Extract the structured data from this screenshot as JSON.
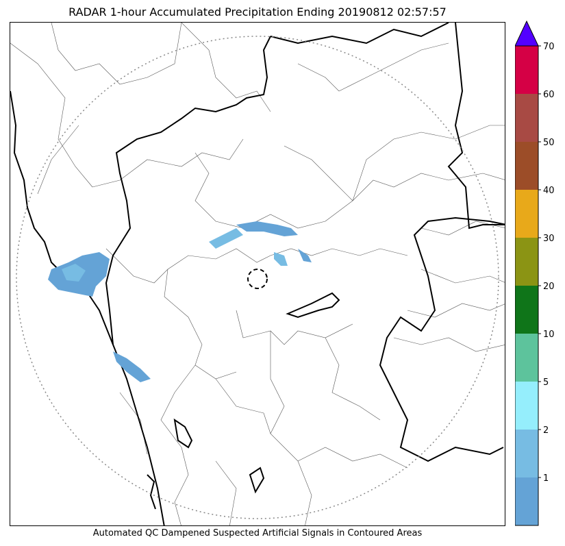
{
  "title": "RADAR 1-hour Accumulated Precipitation Ending 20190812 02:57:57",
  "caption": "Automated QC Dampened Suspected Artificial Signals in Contoured Areas",
  "legend": {
    "levels": [
      {
        "label": "1",
        "color": "#64a3d6"
      },
      {
        "label": "2",
        "color": "#77bce3"
      },
      {
        "label": "5",
        "color": "#95eefc"
      },
      {
        "label": "10",
        "color": "#5dc39c"
      },
      {
        "label": "20",
        "color": "#0f7519"
      },
      {
        "label": "30",
        "color": "#8b9414"
      },
      {
        "label": "40",
        "color": "#e8a91a"
      },
      {
        "label": "50",
        "color": "#9c4d28"
      },
      {
        "label": "60",
        "color": "#a84a44"
      },
      {
        "label": "70",
        "color": "#d50045"
      }
    ],
    "overflow_color": "#5300ff"
  },
  "map": {
    "radar_site_marker": "dashed-circle",
    "coverage_boundary": "dotted-circle"
  }
}
